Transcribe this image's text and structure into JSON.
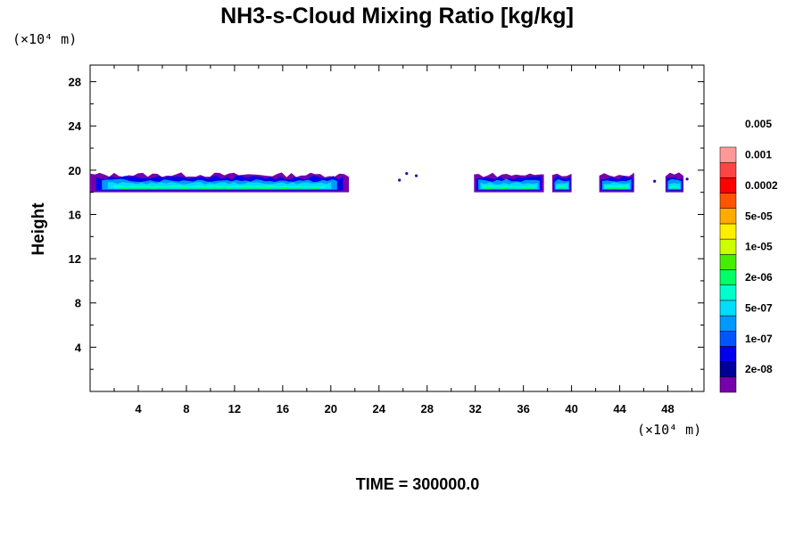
{
  "chart_data": {
    "type": "heatmap",
    "title": "NH3-s-Cloud Mixing Ratio [kg/kg]",
    "ylabel": "Height",
    "xlabel": "",
    "x_unit": "(×10⁴ m)",
    "y_unit": "(×10⁴ m)",
    "xlim": [
      0,
      51
    ],
    "ylim": [
      0,
      29.5
    ],
    "x_ticks": [
      4,
      8,
      12,
      16,
      20,
      24,
      28,
      32,
      36,
      40,
      44,
      48
    ],
    "y_ticks": [
      4,
      8,
      12,
      16,
      20,
      24,
      28
    ],
    "footer": "TIME = 300000.0",
    "legend": {
      "placement": "right",
      "levels": [
        "2e-08",
        "1e-07",
        "5e-07",
        "2e-06",
        "1e-05",
        "5e-05",
        "0.0002",
        "0.001",
        "0.005"
      ],
      "colors": [
        "#7700aa",
        "#000099",
        "#0000ee",
        "#0055ff",
        "#0099ff",
        "#00ddff",
        "#00ffcc",
        "#00ff66",
        "#44ee00",
        "#ccff00",
        "#ffee00",
        "#ffaa00",
        "#ff5500",
        "#ff0000",
        "#ff4444",
        "#ff9999"
      ]
    },
    "cloud_layer": {
      "base": 18.0,
      "top": 19.8
    },
    "cloud_segments": [
      {
        "x0": 0.0,
        "x1": 21.5
      },
      {
        "x0": 31.9,
        "x1": 37.7
      },
      {
        "x0": 38.4,
        "x1": 40.0
      },
      {
        "x0": 42.3,
        "x1": 45.2
      },
      {
        "x0": 47.8,
        "x1": 49.3
      }
    ],
    "specks": [
      {
        "x": 25.7,
        "y": 19.1
      },
      {
        "x": 26.3,
        "y": 19.7
      },
      {
        "x": 27.1,
        "y": 19.5
      },
      {
        "x": 46.9,
        "y": 19.0
      },
      {
        "x": 49.6,
        "y": 19.2
      }
    ]
  }
}
